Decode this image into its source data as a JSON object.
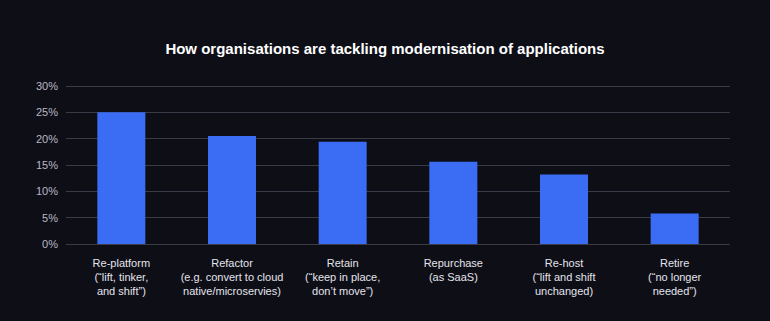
{
  "chart_data": {
    "type": "bar",
    "title": "How organisations are tackling modernisation of applications",
    "categories": [
      "Re-platform\n(“lift, tinker,\nand shift”)",
      "Refactor\n(e.g. convert to cloud\nnative/microservies)",
      "Retain\n(“keep in place,\ndon’t move”)",
      "Repurchase\n(as SaaS)",
      "Re-host\n(“lift and shift\nunchanged)",
      "Retire\n(“no longer\nneeded”)"
    ],
    "values": [
      25,
      20.5,
      19.4,
      15.6,
      13.2,
      5.8
    ],
    "color": "#3b6cf4",
    "ylim": [
      0,
      30
    ],
    "yticks": [
      {
        "value": 0,
        "label": "0%"
      },
      {
        "value": 5,
        "label": "5%"
      },
      {
        "value": 10,
        "label": "10%"
      },
      {
        "value": 15,
        "label": "15%"
      },
      {
        "value": 20,
        "label": "20%"
      },
      {
        "value": 25,
        "label": "25%"
      },
      {
        "value": 30,
        "label": "30%"
      }
    ],
    "grid": true
  }
}
